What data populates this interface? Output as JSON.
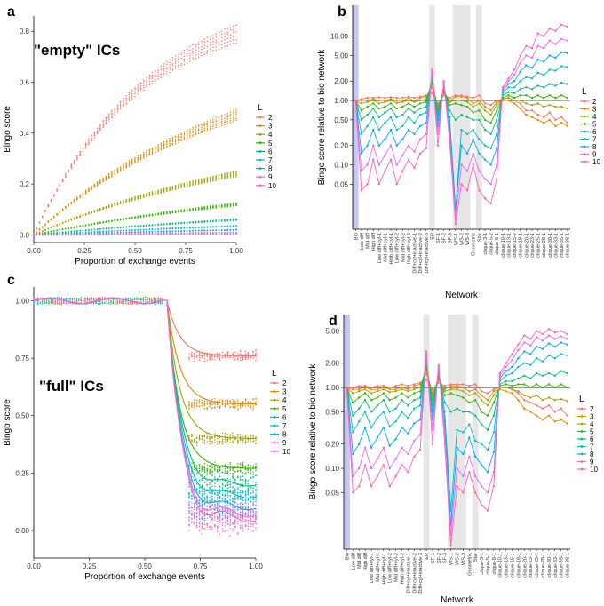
{
  "colors": {
    "2": "#f8766d",
    "3": "#e08b00",
    "4": "#a3a500",
    "5": "#39b600",
    "6": "#00bf7d",
    "7": "#00bfc4",
    "8": "#00a9ff",
    "9": "#e76bf3",
    "10": "#ff62bc",
    "highlight_blue": "#c8c8f5",
    "highlight_grey": "#e6e6e6",
    "zero": "#ff4da6"
  },
  "chart_data": [
    {
      "panel": "a",
      "type": "scatter",
      "annotation": "\"empty\" ICs",
      "xlabel": "Proportion of exchange events",
      "ylabel": "Bingo score",
      "xlim": [
        0,
        1
      ],
      "ylim": [
        -0.03,
        0.86
      ],
      "xticks": [
        "0.00",
        "0.25",
        "0.50",
        "0.75",
        "1.00"
      ],
      "yticks": [
        "0.0",
        "0.2",
        "0.4",
        "0.6",
        "0.8"
      ],
      "legend_title": "L",
      "legend": [
        "2",
        "3",
        "4",
        "5",
        "6",
        "7",
        "8",
        "9",
        "10"
      ],
      "series": [
        {
          "name": "2",
          "end_value": 0.79
        },
        {
          "name": "3",
          "end_value": 0.47
        },
        {
          "name": "4",
          "end_value": 0.24
        },
        {
          "name": "5",
          "end_value": 0.12
        },
        {
          "name": "6",
          "end_value": 0.06
        },
        {
          "name": "7",
          "end_value": 0.035
        },
        {
          "name": "8",
          "end_value": 0.02
        },
        {
          "name": "9",
          "end_value": 0.01
        },
        {
          "name": "10",
          "end_value": 0.005
        }
      ]
    },
    {
      "panel": "b",
      "type": "line",
      "xlabel": "Network",
      "ylabel": "Bingo score relative to bio network",
      "yscale": "log",
      "ylim": [
        0.01,
        30
      ],
      "yticks": [
        "0.05",
        "0.10",
        "0.20",
        "0.50",
        "1.00",
        "2.00",
        "5.00",
        "10.00"
      ],
      "categories": [
        "Bio",
        "Low diff",
        "Mid diff",
        "High diff",
        "Low diff+cyl-1",
        "Mid diff+cyl-1",
        "High diff+cyl-1",
        "Low diff+cyl-2",
        "Mid diff+cyl-2",
        "High diff+cyl-2",
        "Diff+cyl+inactive-1",
        "Diff+cyl+inactive-2",
        "Diff+cyl+inactive-3",
        "ER",
        "SF-1",
        "SF-2",
        "SF-3",
        "WS-1",
        "WS-2",
        "WS-3",
        "Geometric",
        "Star",
        "clique-3-1",
        "clique-5-2",
        "clique-8-1",
        "clique-10-1",
        "clique-13-1",
        "clique-15-2",
        "clique-18-1",
        "clique-20-1",
        "clique-23-1",
        "clique-25-1",
        "clique-28-1",
        "clique-30-1",
        "clique-33-1",
        "clique-35-1",
        "clique-38-1"
      ],
      "legend_title": "L",
      "legend": [
        "2",
        "3",
        "4",
        "5",
        "6",
        "7",
        "8",
        "9",
        "10"
      ],
      "series": [
        {
          "name": "2",
          "values": [
            1,
            1.05,
            1.1,
            1.1,
            1.12,
            1.1,
            1.12,
            1.1,
            1.1,
            1.15,
            1.1,
            1.15,
            1.2,
            1.3,
            0.9,
            1.2,
            1.1,
            1.2,
            1.2,
            1.15,
            1.1,
            1.2,
            0.9,
            0.85,
            1.0,
            1.05,
            1.1,
            1.0,
            0.9,
            0.7,
            0.7,
            0.6,
            0.55,
            0.65,
            0.5,
            0.55,
            0.45
          ]
        },
        {
          "name": "3",
          "values": [
            1,
            1.0,
            1.0,
            1.05,
            1.0,
            1.0,
            1.05,
            1.0,
            1.0,
            1.1,
            1.0,
            1.1,
            1.15,
            1.6,
            0.85,
            1.3,
            1.0,
            1.15,
            1.15,
            1.1,
            0.9,
            1.0,
            0.8,
            0.7,
            0.95,
            1.0,
            1.0,
            0.9,
            0.75,
            0.6,
            0.55,
            0.5,
            0.45,
            0.5,
            0.4,
            0.45,
            0.4
          ]
        },
        {
          "name": "4",
          "values": [
            1,
            0.9,
            0.95,
            1.0,
            0.9,
            0.95,
            1.0,
            0.92,
            0.95,
            1.0,
            0.95,
            1.0,
            1.05,
            1.8,
            0.8,
            1.4,
            0.95,
            1.0,
            1.0,
            0.95,
            0.8,
            0.9,
            0.7,
            0.6,
            0.85,
            1.05,
            1.1,
            1.0,
            1.0,
            0.9,
            0.85,
            0.9,
            0.8,
            0.85,
            0.8,
            0.8,
            0.75
          ]
        },
        {
          "name": "5",
          "values": [
            1,
            0.7,
            0.8,
            0.9,
            0.75,
            0.8,
            0.9,
            0.75,
            0.8,
            0.9,
            0.8,
            0.9,
            0.95,
            2.0,
            0.7,
            1.5,
            0.85,
            0.9,
            0.85,
            0.8,
            0.65,
            0.7,
            0.5,
            0.45,
            0.7,
            1.1,
            1.2,
            1.1,
            1.2,
            1.2,
            1.1,
            1.2,
            1.1,
            1.2,
            1.1,
            1.2,
            1.1
          ]
        },
        {
          "name": "6",
          "values": [
            1,
            0.5,
            0.6,
            0.75,
            0.55,
            0.65,
            0.75,
            0.55,
            0.6,
            0.75,
            0.65,
            0.75,
            0.8,
            2.2,
            0.6,
            1.6,
            0.7,
            0.5,
            0.6,
            0.55,
            0.5,
            0.5,
            0.35,
            0.3,
            0.5,
            1.2,
            1.35,
            1.3,
            1.5,
            1.6,
            1.5,
            1.7,
            1.6,
            1.8,
            1.7,
            1.9,
            1.8
          ]
        },
        {
          "name": "7",
          "values": [
            1,
            0.3,
            0.4,
            0.55,
            0.35,
            0.45,
            0.55,
            0.35,
            0.4,
            0.55,
            0.45,
            0.6,
            0.65,
            2.4,
            0.5,
            1.7,
            0.55,
            0.02,
            0.35,
            0.3,
            0.35,
            0.25,
            0.2,
            0.18,
            0.3,
            1.3,
            1.6,
            1.6,
            2.0,
            2.3,
            2.2,
            2.7,
            2.5,
            3.0,
            2.9,
            3.4,
            3.3
          ]
        },
        {
          "name": "8",
          "values": [
            1,
            0.15,
            0.2,
            0.35,
            0.2,
            0.25,
            0.35,
            0.2,
            0.25,
            0.35,
            0.3,
            0.4,
            0.45,
            2.6,
            0.4,
            1.8,
            0.4,
            0.02,
            0.2,
            0.15,
            0.25,
            0.15,
            0.12,
            0.1,
            0.18,
            1.4,
            1.8,
            2.0,
            2.8,
            3.5,
            3.2,
            4.3,
            4.0,
            5.0,
            4.6,
            5.6,
            5.4
          ]
        },
        {
          "name": "9",
          "values": [
            1,
            0.08,
            0.1,
            0.2,
            0.1,
            0.14,
            0.2,
            0.1,
            0.14,
            0.2,
            0.16,
            0.25,
            0.3,
            2.8,
            0.3,
            1.9,
            0.3,
            0.015,
            0.1,
            0.08,
            0.15,
            0.08,
            0.06,
            0.05,
            0.1,
            1.5,
            2.0,
            2.5,
            3.8,
            5.0,
            4.6,
            7.0,
            6.5,
            8.5,
            7.5,
            9.0,
            8.5
          ]
        },
        {
          "name": "10",
          "values": [
            1,
            0.04,
            0.05,
            0.12,
            0.05,
            0.08,
            0.12,
            0.05,
            0.08,
            0.12,
            0.09,
            0.15,
            0.18,
            3.0,
            0.2,
            2.0,
            0.22,
            0.012,
            0.05,
            0.04,
            0.1,
            0.04,
            0.03,
            0.025,
            0.06,
            1.6,
            2.2,
            3.0,
            5.0,
            7.0,
            6.5,
            11.0,
            10.0,
            13.0,
            12.0,
            15.0,
            14.0
          ]
        }
      ]
    },
    {
      "panel": "c",
      "type": "scatter",
      "annotation": "\"full\" ICs",
      "xlabel": "Proportion of exchange events",
      "ylabel": "Bingo score",
      "xlim": [
        0,
        1
      ],
      "ylim": [
        -0.12,
        1.06
      ],
      "xticks": [
        "0.00",
        "0.25",
        "0.50",
        "0.75",
        "1.00"
      ],
      "yticks": [
        "0.00",
        "0.25",
        "0.50",
        "0.75",
        "1.00"
      ],
      "legend_title": "L",
      "legend": [
        "2",
        "3",
        "4",
        "5",
        "6",
        "7",
        "8",
        "9",
        "10"
      ],
      "series": [
        {
          "name": "2",
          "end_value": 0.76
        },
        {
          "name": "3",
          "end_value": 0.55
        },
        {
          "name": "4",
          "end_value": 0.4
        },
        {
          "name": "5",
          "end_value": 0.27
        },
        {
          "name": "6",
          "end_value": 0.2
        },
        {
          "name": "7",
          "end_value": 0.15
        },
        {
          "name": "8",
          "end_value": 0.1
        },
        {
          "name": "9",
          "end_value": 0.07
        },
        {
          "name": "10",
          "end_value": 0.05
        }
      ]
    },
    {
      "panel": "d",
      "type": "line",
      "xlabel": "Network",
      "ylabel": "Bingo score relative to bio network",
      "yscale": "log",
      "ylim": [
        0.01,
        8
      ],
      "yticks": [
        "0.05",
        "0.10",
        "0.20",
        "0.50",
        "1.00",
        "2.00",
        "5.00"
      ],
      "categories": [
        "Bio",
        "Low diff",
        "Mid diff",
        "High diff",
        "Low diff+cyl-1",
        "Mid diff+cyl-1",
        "High diff+cyl-1",
        "Low diff+cyl-2",
        "Mid diff+cyl-2",
        "High diff+cyl-2",
        "Diff+cyl+inactive-1",
        "Diff+cyl+inactive-2",
        "Diff+cyl+inactive-3",
        "ER",
        "SF-1",
        "SF-2",
        "SF-3",
        "WS-1",
        "WS-2",
        "WS-3",
        "Geometric",
        "Star",
        "clique-3-1",
        "clique-5-1",
        "clique-8-1",
        "clique-10-1",
        "clique-13-1",
        "clique-15-1",
        "clique-18-1",
        "clique-20-1",
        "clique-23-1",
        "clique-25-1",
        "clique-28-1",
        "clique-30-1",
        "clique-33-1",
        "clique-35-1",
        "clique-38-1"
      ],
      "legend_title": "L",
      "legend": [
        "2",
        "3",
        "4",
        "5",
        "6",
        "7",
        "8",
        "9",
        "10"
      ],
      "series": [
        {
          "name": "2",
          "values": [
            1,
            1.0,
            1.05,
            1.05,
            1.0,
            1.05,
            1.05,
            1.0,
            1.05,
            1.1,
            1.05,
            1.1,
            1.15,
            1.25,
            0.95,
            1.15,
            1.05,
            1.1,
            1.1,
            1.1,
            1.05,
            1.1,
            0.9,
            0.85,
            0.95,
            1.0,
            1.0,
            0.95,
            0.85,
            0.7,
            0.65,
            0.6,
            0.55,
            0.6,
            0.5,
            0.55,
            0.45
          ]
        },
        {
          "name": "3",
          "values": [
            1,
            0.95,
            0.95,
            1.0,
            0.95,
            0.95,
            1.0,
            0.95,
            0.95,
            1.0,
            0.95,
            1.05,
            1.1,
            1.5,
            0.85,
            1.25,
            0.95,
            1.05,
            1.05,
            1.0,
            0.9,
            0.95,
            0.8,
            0.7,
            0.9,
            0.95,
            0.9,
            0.85,
            0.7,
            0.55,
            0.5,
            0.45,
            0.4,
            0.45,
            0.38,
            0.4,
            0.36
          ]
        },
        {
          "name": "4",
          "values": [
            1,
            0.85,
            0.9,
            0.95,
            0.85,
            0.9,
            0.95,
            0.88,
            0.9,
            0.95,
            0.9,
            0.95,
            1.0,
            1.7,
            0.8,
            1.3,
            0.9,
            0.95,
            0.95,
            0.9,
            0.8,
            0.85,
            0.7,
            0.6,
            0.8,
            1.0,
            1.0,
            0.95,
            0.9,
            0.8,
            0.75,
            0.8,
            0.7,
            0.75,
            0.7,
            0.72,
            0.68
          ]
        },
        {
          "name": "5",
          "values": [
            1,
            0.65,
            0.75,
            0.85,
            0.7,
            0.75,
            0.85,
            0.7,
            0.75,
            0.85,
            0.75,
            0.85,
            0.9,
            1.9,
            0.7,
            1.4,
            0.8,
            0.85,
            0.8,
            0.75,
            0.65,
            0.7,
            0.5,
            0.45,
            0.65,
            1.05,
            1.1,
            1.05,
            1.1,
            1.1,
            1.0,
            1.1,
            1.0,
            1.1,
            1.0,
            1.1,
            1.0
          ]
        },
        {
          "name": "6",
          "values": [
            1,
            0.45,
            0.55,
            0.7,
            0.5,
            0.6,
            0.7,
            0.5,
            0.55,
            0.7,
            0.6,
            0.7,
            0.75,
            2.0,
            0.6,
            1.5,
            0.65,
            0.5,
            0.55,
            0.5,
            0.5,
            0.45,
            0.35,
            0.3,
            0.45,
            1.1,
            1.2,
            1.2,
            1.3,
            1.4,
            1.3,
            1.5,
            1.4,
            1.5,
            1.4,
            1.6,
            1.5
          ]
        },
        {
          "name": "7",
          "values": [
            1,
            0.28,
            0.38,
            0.5,
            0.32,
            0.42,
            0.5,
            0.33,
            0.38,
            0.5,
            0.42,
            0.55,
            0.6,
            2.2,
            0.5,
            1.6,
            0.5,
            0.03,
            0.3,
            0.28,
            0.35,
            0.22,
            0.2,
            0.17,
            0.28,
            1.2,
            1.4,
            1.5,
            1.8,
            2.0,
            1.9,
            2.3,
            2.1,
            2.5,
            2.3,
            2.6,
            2.5
          ]
        },
        {
          "name": "8",
          "values": [
            1,
            0.15,
            0.2,
            0.32,
            0.18,
            0.24,
            0.32,
            0.19,
            0.23,
            0.32,
            0.27,
            0.36,
            0.4,
            2.4,
            0.4,
            1.7,
            0.38,
            0.02,
            0.18,
            0.15,
            0.24,
            0.14,
            0.11,
            0.09,
            0.16,
            1.3,
            1.6,
            1.8,
            2.3,
            2.8,
            2.6,
            3.2,
            3.0,
            3.5,
            3.2,
            3.6,
            3.4
          ]
        },
        {
          "name": "9",
          "values": [
            1,
            0.08,
            0.1,
            0.18,
            0.1,
            0.13,
            0.18,
            0.1,
            0.13,
            0.18,
            0.15,
            0.22,
            0.26,
            2.6,
            0.3,
            1.8,
            0.28,
            0.015,
            0.1,
            0.08,
            0.14,
            0.08,
            0.06,
            0.05,
            0.09,
            1.4,
            1.8,
            2.2,
            2.9,
            3.6,
            3.3,
            4.2,
            3.8,
            4.4,
            4.0,
            4.3,
            4.0
          ]
        },
        {
          "name": "10",
          "values": [
            1,
            0.05,
            0.06,
            0.11,
            0.06,
            0.08,
            0.11,
            0.06,
            0.08,
            0.11,
            0.09,
            0.14,
            0.17,
            2.8,
            0.2,
            1.9,
            0.2,
            0.011,
            0.06,
            0.05,
            0.09,
            0.05,
            0.035,
            0.03,
            0.06,
            1.5,
            2.0,
            2.6,
            3.4,
            4.4,
            4.0,
            5.0,
            4.6,
            5.3,
            4.8,
            5.0,
            4.6
          ]
        }
      ]
    }
  ]
}
